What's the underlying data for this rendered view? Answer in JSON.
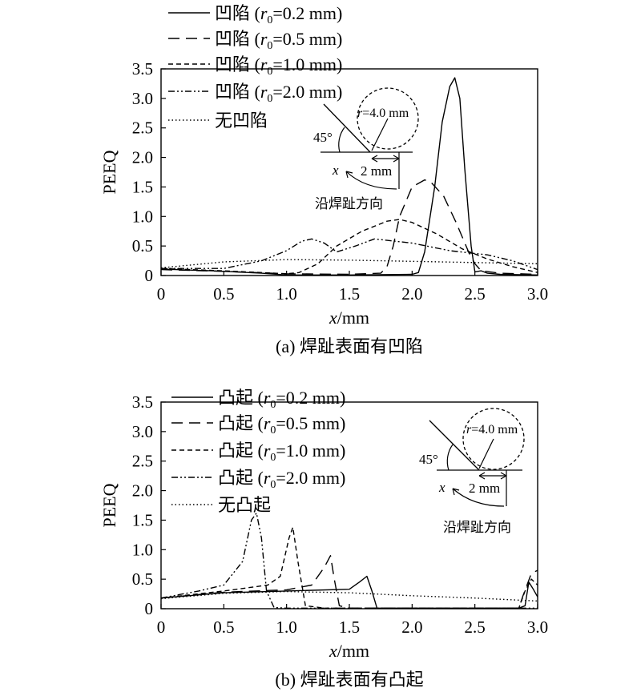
{
  "chart_data": [
    {
      "type": "line",
      "xlabel": "x/mm",
      "ylabel": "PEEQ",
      "xlim": [
        0,
        3.0
      ],
      "ylim": [
        0,
        3.5
      ],
      "xticks": [
        "0",
        "0.5",
        "1.0",
        "1.5",
        "2.0",
        "2.5",
        "3.0"
      ],
      "yticks": [
        "0",
        "0.5",
        "1.0",
        "1.5",
        "2.0",
        "2.5",
        "3.0",
        "3.5"
      ],
      "caption": "(a) 焊趾表面有凹陷",
      "legend": [
        "凹陷 (r0=0.2 mm)",
        "凹陷 (r0=0.5 mm)",
        "凹陷 (r0=1.0 mm)",
        "凹陷 (r0=2.0 mm)",
        "无凹陷"
      ],
      "inset": {
        "angle": "45°",
        "radius": "r=4.0 mm",
        "offset": "2 mm",
        "axis": "x",
        "direction": "沿焊趾方向"
      },
      "series": [
        {
          "dash": "solid",
          "x": [
            0,
            0.4,
            0.8,
            1.0,
            1.5,
            2.0,
            2.05,
            2.1,
            2.18,
            2.24,
            2.3,
            2.34,
            2.38,
            2.42,
            2.47,
            2.5,
            2.55,
            2.6,
            2.7,
            3.0
          ],
          "y": [
            0.11,
            0.08,
            0.04,
            0.01,
            0.01,
            0.02,
            0.05,
            0.4,
            1.5,
            2.6,
            3.2,
            3.35,
            3.0,
            1.8,
            0.5,
            0.06,
            0.08,
            0.04,
            0.02,
            0.01
          ]
        },
        {
          "dash": "long",
          "x": [
            0,
            0.5,
            1.0,
            1.5,
            1.75,
            1.8,
            1.85,
            1.9,
            2.0,
            2.1,
            2.15,
            2.25,
            2.35,
            2.45,
            2.5,
            2.55,
            2.7,
            3.0
          ],
          "y": [
            0.1,
            0.07,
            0.03,
            0.02,
            0.04,
            0.15,
            0.5,
            1.0,
            1.5,
            1.62,
            1.58,
            1.35,
            0.9,
            0.4,
            0.2,
            0.08,
            0.04,
            0.02
          ]
        },
        {
          "dash": "short",
          "x": [
            0,
            0.5,
            1.0,
            1.1,
            1.25,
            1.4,
            1.6,
            1.8,
            1.9,
            2.0,
            2.2,
            2.4,
            2.6,
            2.8,
            3.0
          ],
          "y": [
            0.12,
            0.08,
            0.03,
            0.05,
            0.2,
            0.5,
            0.75,
            0.92,
            0.95,
            0.9,
            0.7,
            0.45,
            0.28,
            0.15,
            0.05
          ]
        },
        {
          "dash": "dashdot",
          "x": [
            0,
            0.5,
            0.8,
            1.0,
            1.12,
            1.2,
            1.3,
            1.4,
            1.55,
            1.7,
            2.0,
            2.3,
            2.6,
            2.8,
            3.0
          ],
          "y": [
            0.12,
            0.12,
            0.25,
            0.42,
            0.58,
            0.62,
            0.55,
            0.4,
            0.5,
            0.62,
            0.55,
            0.42,
            0.35,
            0.25,
            0.1
          ]
        },
        {
          "dash": "dotted",
          "x": [
            0,
            0.5,
            1.0,
            1.5,
            2.0,
            2.5,
            3.0
          ],
          "y": [
            0.13,
            0.23,
            0.27,
            0.26,
            0.24,
            0.22,
            0.2
          ]
        }
      ]
    },
    {
      "type": "line",
      "xlabel": "x/mm",
      "ylabel": "PEEQ",
      "xlim": [
        0,
        3.0
      ],
      "ylim": [
        0,
        3.5
      ],
      "xticks": [
        "0",
        "0.5",
        "1.0",
        "1.5",
        "2.0",
        "2.5",
        "3.0"
      ],
      "yticks": [
        "0",
        "0.5",
        "1.0",
        "1.5",
        "2.0",
        "2.5",
        "3.0",
        "3.5"
      ],
      "caption": "(b) 焊趾表面有凸起",
      "legend": [
        "凸起 (r0=0.2 mm)",
        "凸起 (r0=0.5 mm)",
        "凸起 (r0=1.0 mm)",
        "凸起 (r0=2.0 mm)",
        "无凸起"
      ],
      "inset": {
        "angle": "45°",
        "radius": "r=4.0 mm",
        "offset": "2 mm",
        "axis": "x",
        "direction": "沿焊趾方向"
      },
      "series": [
        {
          "dash": "solid",
          "x": [
            0,
            0.5,
            1.0,
            1.5,
            1.58,
            1.64,
            1.68,
            1.72,
            1.8,
            2.5,
            2.85,
            2.9,
            2.93,
            2.96,
            3.0
          ],
          "y": [
            0.18,
            0.27,
            0.3,
            0.33,
            0.45,
            0.55,
            0.3,
            0.01,
            0.01,
            0.01,
            0.01,
            0.05,
            0.45,
            0.35,
            0.2
          ]
        },
        {
          "dash": "long",
          "x": [
            0,
            0.5,
            1.0,
            1.2,
            1.3,
            1.35,
            1.38,
            1.42,
            1.5,
            2.5,
            2.85,
            2.88,
            2.95,
            3.0
          ],
          "y": [
            0.18,
            0.28,
            0.32,
            0.4,
            0.7,
            0.9,
            0.5,
            0.05,
            0.01,
            0.01,
            0.01,
            0.2,
            0.6,
            0.65
          ]
        },
        {
          "dash": "short",
          "x": [
            0,
            0.5,
            0.85,
            0.95,
            1.02,
            1.05,
            1.09,
            1.15,
            1.3,
            2.5,
            2.85,
            2.9,
            2.95,
            3.0
          ],
          "y": [
            0.18,
            0.3,
            0.4,
            0.55,
            1.2,
            1.38,
            0.8,
            0.05,
            0.01,
            0.01,
            0.01,
            0.3,
            0.5,
            0.4
          ]
        },
        {
          "dash": "dashdot",
          "x": [
            0,
            0.3,
            0.5,
            0.65,
            0.72,
            0.76,
            0.8,
            0.84,
            0.9,
            1.0,
            2.8,
            3.0
          ],
          "y": [
            0.18,
            0.3,
            0.4,
            0.8,
            1.5,
            1.62,
            1.2,
            0.3,
            0.02,
            0.01,
            0.01,
            0.01
          ]
        },
        {
          "dash": "dotted",
          "x": [
            0,
            0.5,
            1.0,
            1.5,
            2.0,
            2.5,
            3.0
          ],
          "y": [
            0.17,
            0.26,
            0.29,
            0.27,
            0.22,
            0.18,
            0.13
          ]
        }
      ]
    }
  ]
}
